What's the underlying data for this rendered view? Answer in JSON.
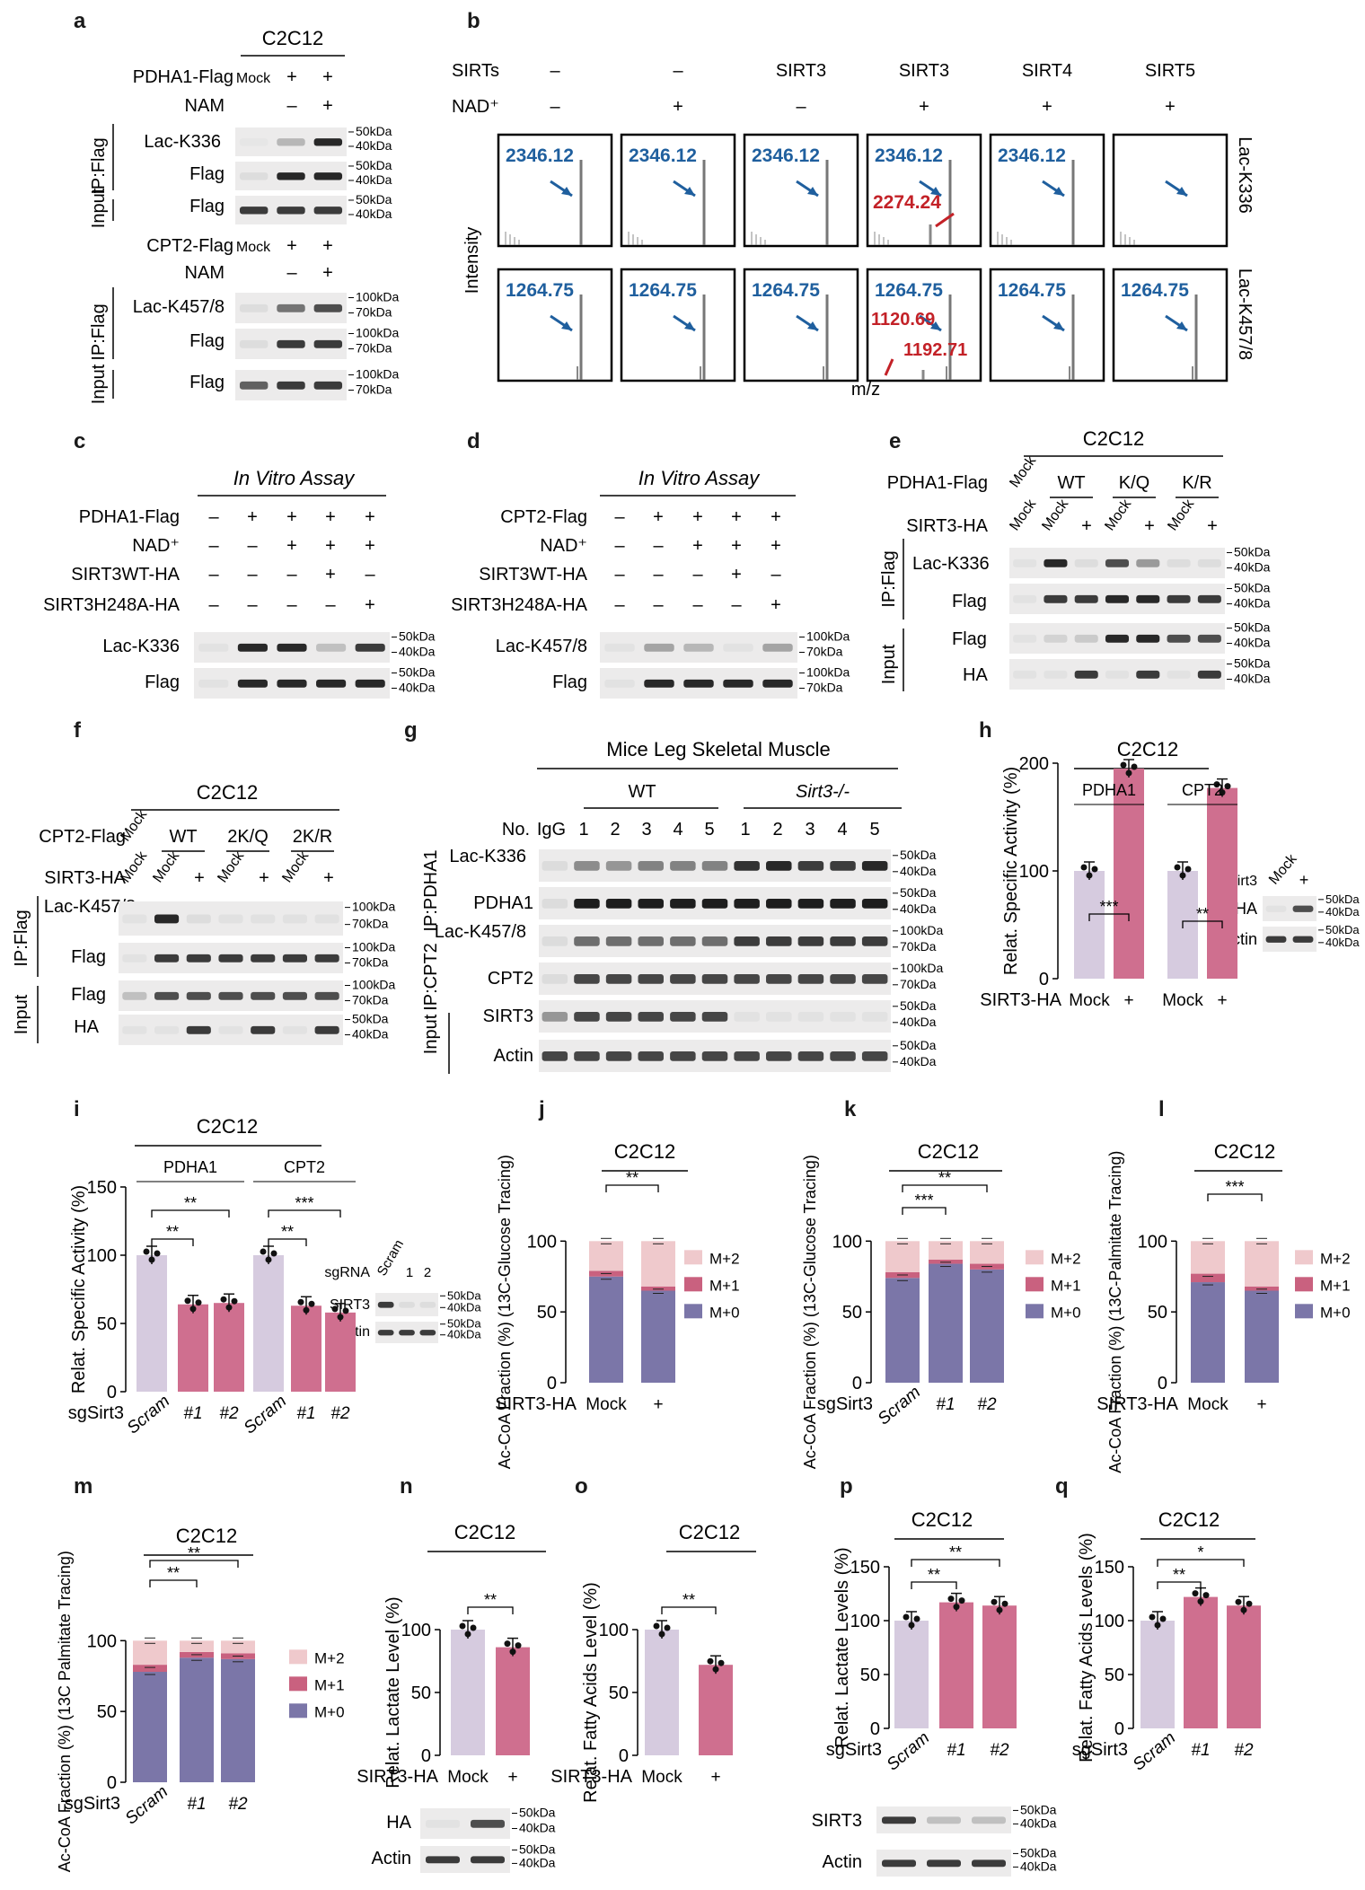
{
  "panels": {
    "a": {
      "letter": "a",
      "cell": "C2C12",
      "top": {
        "construct": "PDHA1-Flag",
        "nam": "NAM",
        "lanes": [
          "Mock",
          "+",
          "+"
        ],
        "nam_signs": [
          "–",
          "+"
        ],
        "rows": [
          "Lac-K336",
          "Flag",
          "Flag"
        ],
        "ip": "IP:Flag",
        "input": "Input",
        "mw": [
          [
            "50kDa",
            "40kDa"
          ],
          [
            "50kDa",
            "40kDa"
          ],
          [
            "50kDa",
            "40kDa"
          ]
        ]
      },
      "bottom": {
        "construct": "CPT2-Flag",
        "nam": "NAM",
        "lanes": [
          "Mock",
          "+",
          "+"
        ],
        "nam_signs": [
          "–",
          "+"
        ],
        "rows": [
          "Lac-K457/8",
          "Flag",
          "Flag"
        ],
        "ip": "IP:Flag",
        "input": "Input",
        "mw": [
          [
            "100kDa",
            "70kDa"
          ],
          [
            "100kDa",
            "70kDa"
          ],
          [
            "100kDa",
            "70kDa"
          ]
        ]
      }
    },
    "b": {
      "letter": "b",
      "sirts_label": "SIRTs",
      "nad_label": "NAD⁺",
      "sirts": [
        "–",
        "–",
        "SIRT3",
        "SIRT3",
        "SIRT4",
        "SIRT5"
      ],
      "nad": [
        "–",
        "+",
        "–",
        "+",
        "+",
        "+"
      ],
      "row1_peak": "2346.12",
      "row1_extra": "2274.24",
      "row2_peak": "1264.75",
      "row2_extra1": "1120.69",
      "row2_extra2": "1192.71",
      "ylabel": "Intensity",
      "xlabel": "m/z",
      "row1_side": "Lac-K336",
      "row2_side": "Lac-K457/8"
    },
    "c": {
      "letter": "c",
      "title": "In Vitro Assay",
      "rows": [
        "PDHA1-Flag",
        "NAD⁺",
        "SIRT3WT-HA",
        "SIRT3H248A-HA"
      ],
      "signs": [
        [
          "–",
          "+",
          "+",
          "+",
          "+"
        ],
        [
          "–",
          "–",
          "+",
          "+",
          "+"
        ],
        [
          "–",
          "–",
          "–",
          "+",
          "–"
        ],
        [
          "–",
          "–",
          "–",
          "–",
          "+"
        ]
      ],
      "blots": [
        "Lac-K336",
        "Flag"
      ],
      "mw": [
        [
          "50kDa",
          "40kDa"
        ],
        [
          "50kDa",
          "40kDa"
        ]
      ]
    },
    "d": {
      "letter": "d",
      "title": "In Vitro Assay",
      "rows": [
        "CPT2-Flag",
        "NAD⁺",
        "SIRT3WT-HA",
        "SIRT3H248A-HA"
      ],
      "signs": [
        [
          "–",
          "+",
          "+",
          "+",
          "+"
        ],
        [
          "–",
          "–",
          "+",
          "+",
          "+"
        ],
        [
          "–",
          "–",
          "–",
          "+",
          "–"
        ],
        [
          "–",
          "–",
          "–",
          "–",
          "+"
        ]
      ],
      "blots": [
        "Lac-K457/8",
        "Flag"
      ],
      "mw": [
        [
          "100kDa",
          "70kDa"
        ],
        [
          "100kDa",
          "70kDa"
        ]
      ]
    },
    "e": {
      "letter": "e",
      "cell": "C2C12",
      "construct": "PDHA1-Flag",
      "sirt": "SIRT3-HA",
      "groups": [
        "WT",
        "K/Q",
        "K/R"
      ],
      "mock": "Mock",
      "plus": "+",
      "rows": [
        "Lac-K336",
        "Flag",
        "Flag",
        "HA"
      ],
      "ip": "IP:Flag",
      "input": "Input",
      "mw": [
        [
          "50kDa",
          "40kDa"
        ],
        [
          "50kDa",
          "40kDa"
        ],
        [
          "50kDa",
          "40kDa"
        ],
        [
          "50kDa",
          "40kDa"
        ]
      ]
    },
    "f": {
      "letter": "f",
      "cell": "C2C12",
      "construct": "CPT2-Flag",
      "sirt": "SIRT3-HA",
      "groups": [
        "WT",
        "2K/Q",
        "2K/R"
      ],
      "mock": "Mock",
      "plus": "+",
      "rows": [
        "Lac-K457/8",
        "Flag",
        "Flag",
        "HA"
      ],
      "ip": "IP:Flag",
      "input": "Input",
      "mw": [
        [
          "100kDa",
          "70kDa"
        ],
        [
          "100kDa",
          "70kDa"
        ],
        [
          "100kDa",
          "70kDa"
        ],
        [
          "50kDa",
          "40kDa"
        ]
      ]
    },
    "g": {
      "letter": "g",
      "title": "Mice Leg Skeletal Muscle",
      "wt": "WT",
      "ko": "Sirt3-/-",
      "no": "No.",
      "igg": "IgG",
      "lanes": [
        "1",
        "2",
        "3",
        "4",
        "5",
        "1",
        "2",
        "3",
        "4",
        "5"
      ],
      "rows": [
        "Lac-K336",
        "PDHA1",
        "Lac-K457/8",
        "CPT2",
        "SIRT3",
        "Actin"
      ],
      "ip1": "IP:PDHA1",
      "ip2": "IP:CPT2",
      "input": "Input",
      "mw": [
        [
          "50kDa",
          "40kDa"
        ],
        [
          "50kDa",
          "40kDa"
        ],
        [
          "100kDa",
          "70kDa"
        ],
        [
          "100kDa",
          "70kDa"
        ],
        [
          "50kDa",
          "40kDa"
        ],
        [
          "50kDa",
          "40kDa"
        ]
      ]
    },
    "h": {
      "letter": "h",
      "cell": "C2C12",
      "groups": [
        "PDHA1",
        "CPT2"
      ],
      "xrow_label": "SIRT3-HA",
      "xticks": [
        "Mock",
        "+",
        "Mock",
        "+"
      ],
      "sig": [
        "***",
        "**"
      ],
      "inset": {
        "lanes": [
          "Mock",
          "+"
        ],
        "header": "Sirt3",
        "rows": [
          "HA",
          "Actin"
        ],
        "mw": [
          [
            "50kDa",
            "40kDa"
          ],
          [
            "50kDa",
            "40kDa"
          ]
        ]
      }
    },
    "i": {
      "letter": "i",
      "cell": "C2C12",
      "groups": [
        "PDHA1",
        "CPT2"
      ],
      "xrow_label": "sgSirt3",
      "xticks": [
        "Scram",
        "#1",
        "#2",
        "Scram",
        "#1",
        "#2"
      ],
      "sig": [
        "**",
        "**",
        "**",
        "***"
      ],
      "inset": {
        "header": "sgRNA",
        "lanes": [
          "Scram",
          "1",
          "2"
        ],
        "rows": [
          "SIRT3",
          "Actin"
        ],
        "mw": [
          [
            "50kDa",
            "40kDa"
          ],
          [
            "50kDa",
            "40kDa"
          ]
        ]
      }
    },
    "j": {
      "letter": "j",
      "cell": "C2C12",
      "xrow_label": "SIRT3-HA",
      "xticks": [
        "Mock",
        "+"
      ],
      "sig": [
        "**"
      ]
    },
    "k": {
      "letter": "k",
      "cell": "C2C12",
      "xrow_label": "sgSirt3",
      "xticks": [
        "Scram",
        "#1",
        "#2"
      ],
      "sig": [
        "***",
        "**"
      ]
    },
    "l": {
      "letter": "l",
      "cell": "C2C12",
      "xrow_label": "SIRT3-HA",
      "xticks": [
        "Mock",
        "+"
      ],
      "sig": [
        "***"
      ]
    },
    "m": {
      "letter": "m",
      "cell": "C2C12",
      "xrow_label": "sgSirt3",
      "xticks": [
        "Scram",
        "#1",
        "#2"
      ],
      "sig": [
        "**",
        "**"
      ]
    },
    "n": {
      "letter": "n",
      "cell": "C2C12",
      "xrow_label": "SIRT3-HA",
      "xticks": [
        "Mock",
        "+"
      ],
      "sig": [
        "**"
      ],
      "inset": {
        "rows": [
          "HA",
          "Actin"
        ],
        "mw": [
          [
            "50kDa",
            "40kDa"
          ],
          [
            "50kDa",
            "40kDa"
          ]
        ]
      }
    },
    "o": {
      "letter": "o",
      "cell": "C2C12",
      "xrow_label": "SIRT3-HA",
      "xticks": [
        "Mock",
        "+"
      ],
      "sig": [
        "**"
      ]
    },
    "p": {
      "letter": "p",
      "cell": "C2C12",
      "xrow_label": "sgSirt3",
      "xticks": [
        "Scram",
        "#1",
        "#2"
      ],
      "sig": [
        "**",
        "**"
      ],
      "inset": {
        "rows": [
          "SIRT3",
          "Actin"
        ],
        "mw": [
          [
            "50kDa",
            "40kDa"
          ],
          [
            "50kDa",
            "40kDa"
          ]
        ]
      }
    },
    "q": {
      "letter": "q",
      "cell": "C2C12",
      "xrow_label": "sgSirt3",
      "xticks": [
        "Scram",
        "#1",
        "#2"
      ],
      "sig": [
        "**",
        "*"
      ]
    }
  },
  "legend": [
    "M+2",
    "M+1",
    "M+0"
  ],
  "colors": {
    "mock": "#d6cbdf",
    "treated": "#cf6f8f",
    "m0": "#7b76a8",
    "m1": "#c9617f",
    "m2": "#efc9cc",
    "peak_blue": "#1f5f9e",
    "peak_red": "#c32127"
  },
  "chart_data": [
    {
      "panel": "h",
      "type": "bar",
      "categories": [
        "PDHA1 Mock",
        "PDHA1 +",
        "CPT2 Mock",
        "CPT2 +"
      ],
      "values": [
        100,
        195,
        100,
        177
      ],
      "ylabel": "Relat. Specific Activity (%)",
      "ylim": [
        0,
        200
      ],
      "yticks": [
        0,
        100,
        200
      ]
    },
    {
      "panel": "i",
      "type": "bar",
      "categories": [
        "PDHA1 Scram",
        "PDHA1 #1",
        "PDHA1 #2",
        "CPT2 Scram",
        "CPT2 #1",
        "CPT2 #2"
      ],
      "values": [
        100,
        64,
        65,
        100,
        63,
        58
      ],
      "ylabel": "Relat. Specific Activity (%)",
      "ylim": [
        0,
        150
      ],
      "yticks": [
        0,
        50,
        100,
        150
      ]
    },
    {
      "panel": "j",
      "type": "bar",
      "categories": [
        "Mock",
        "+"
      ],
      "series": [
        {
          "name": "M+0",
          "values": [
            75,
            65
          ]
        },
        {
          "name": "M+1",
          "values": [
            4,
            3
          ]
        },
        {
          "name": "M+2",
          "values": [
            21,
            32
          ]
        }
      ],
      "ylabel": "Ac-CoA Fraction (%) (13C-Glucose Tracing)",
      "ylim": [
        0,
        130
      ],
      "yticks": [
        0,
        50,
        100
      ]
    },
    {
      "panel": "k",
      "type": "bar",
      "categories": [
        "Scram",
        "#1",
        "#2"
      ],
      "series": [
        {
          "name": "M+0",
          "values": [
            74,
            84,
            80
          ]
        },
        {
          "name": "M+1",
          "values": [
            4,
            3,
            4
          ]
        },
        {
          "name": "M+2",
          "values": [
            22,
            13,
            16
          ]
        }
      ],
      "ylabel": "Ac-CoA Fraction (%) (13C-Glucose Tracing)",
      "ylim": [
        0,
        130
      ],
      "yticks": [
        0,
        50,
        100
      ]
    },
    {
      "panel": "l",
      "type": "bar",
      "categories": [
        "Mock",
        "+"
      ],
      "series": [
        {
          "name": "M+0",
          "values": [
            71,
            65
          ]
        },
        {
          "name": "M+1",
          "values": [
            6,
            3
          ]
        },
        {
          "name": "M+2",
          "values": [
            23,
            32
          ]
        }
      ],
      "ylabel": "Ac-CoA Fraction (%) (13C-Palmitate Tracing)",
      "ylim": [
        0,
        130
      ],
      "yticks": [
        0,
        50,
        100
      ]
    },
    {
      "panel": "m",
      "type": "bar",
      "categories": [
        "Scram",
        "#1",
        "#2"
      ],
      "series": [
        {
          "name": "M+0",
          "values": [
            78,
            88,
            87
          ]
        },
        {
          "name": "M+1",
          "values": [
            5,
            4,
            4
          ]
        },
        {
          "name": "M+2",
          "values": [
            17,
            8,
            9
          ]
        }
      ],
      "ylabel": "Ac-CoA Fraction (%) (13C Palmitate Tracing)",
      "ylim": [
        0,
        130
      ],
      "yticks": [
        0,
        50,
        100
      ]
    },
    {
      "panel": "n",
      "type": "bar",
      "categories": [
        "Mock",
        "+"
      ],
      "values": [
        100,
        86
      ],
      "ylabel": "Relat. Lactate Level (%)",
      "ylim": [
        0,
        125
      ],
      "yticks": [
        0,
        50,
        100
      ]
    },
    {
      "panel": "o",
      "type": "bar",
      "categories": [
        "Mock",
        "+"
      ],
      "values": [
        100,
        72
      ],
      "ylabel": "Relat. Fatty Acids Level (%)",
      "ylim": [
        0,
        125
      ],
      "yticks": [
        0,
        50,
        100
      ]
    },
    {
      "panel": "p",
      "type": "bar",
      "categories": [
        "Scram",
        "#1",
        "#2"
      ],
      "values": [
        100,
        117,
        114
      ],
      "ylabel": "Relat. Lactate Levels (%)",
      "ylim": [
        0,
        150
      ],
      "yticks": [
        0,
        50,
        100,
        150
      ]
    },
    {
      "panel": "q",
      "type": "bar",
      "categories": [
        "Scram",
        "#1",
        "#2"
      ],
      "values": [
        100,
        122,
        114
      ],
      "ylabel": "Relat. Fatty Acids Levels (%)",
      "ylim": [
        0,
        150
      ],
      "yticks": [
        0,
        50,
        100,
        150
      ]
    }
  ]
}
